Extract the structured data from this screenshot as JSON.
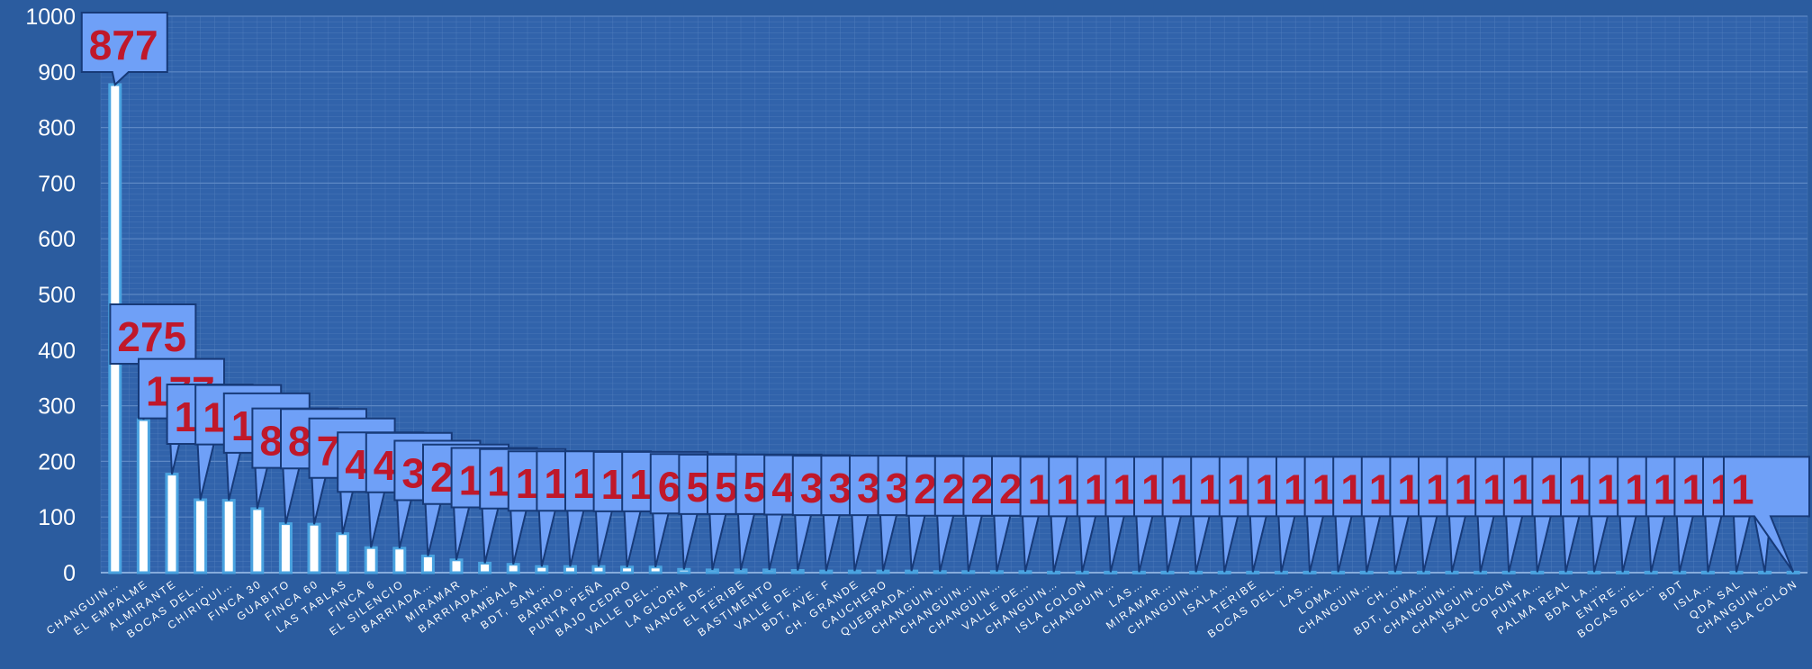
{
  "chart_data": {
    "type": "bar",
    "title": "",
    "xlabel": "",
    "ylabel": "",
    "ylim": [
      0,
      1000
    ],
    "yticks": [
      0,
      100,
      200,
      300,
      400,
      500,
      600,
      700,
      800,
      900,
      1000
    ],
    "grid": "on",
    "categories": [
      "CHANGUIN…",
      "EL EMPALME",
      "ALMIRANTE",
      "BOCAS DEL…",
      "CHIRIQUI…",
      "FINCA 30",
      "GUABITO",
      "FINCA 60",
      "LAS TABLAS",
      "FINCA 6",
      "EL SILENCIO",
      "BARRIADA…",
      "MIRAMAR",
      "BARRIADA…",
      "RAMBALA",
      "BDT, SAN…",
      "BARRIO…",
      "PUNTA PEÑA",
      "BAJO CEDRO",
      "VALLE DEL…",
      "LA GLORIA",
      "NANCE DE…",
      "EL TERIBE",
      "BASTIMENTO",
      "VALLE DE…",
      "BDT, AVE. F",
      "CH. GRANDE",
      "CAUCHERO",
      "QUEBRADA…",
      "CHANGUIN…",
      "CHANGUIN…",
      "CHANGUIN…",
      "VALLE DE…",
      "CHANGUIN…",
      "ISLA COLON",
      "CHANGUIN…",
      "LAS…",
      "MIRAMAR…",
      "CHANGUIN…",
      "ISALA…",
      "TERIBE",
      "BOCAS DEL…",
      "LAS…",
      "LOMA…",
      "CHANGUIN…",
      "CH.…",
      "BDT, LOMA…",
      "CHANGUIN…",
      "CHANGUIN…",
      "ISAL COLÓN",
      "PUNTA…",
      "PALMA REAL",
      "BDA LA…",
      "ENTRE…",
      "BOCAS DEL…",
      "BDT",
      "ISLA…",
      "QDA SAL",
      "CHANGUIN…",
      "ISLA COLÓN"
    ],
    "values": [
      877,
      275,
      177,
      131,
      130,
      115,
      88,
      87,
      70,
      45,
      44,
      30,
      23,
      17,
      15,
      11,
      11,
      11,
      10,
      10,
      6,
      5,
      5,
      5,
      4,
      3,
      3,
      3,
      3,
      2,
      2,
      2,
      2,
      1,
      1,
      1,
      1,
      1,
      1,
      1,
      1,
      1,
      1,
      1,
      1,
      1,
      1,
      1,
      1,
      1,
      1,
      1,
      1,
      1,
      1,
      1,
      1,
      1,
      1,
      1
    ],
    "data_labels": [
      "877",
      "275",
      "177",
      "131",
      "130",
      "115",
      "88",
      "87",
      "70",
      "45",
      "44",
      "30",
      "23",
      "17",
      "15",
      "11",
      "11",
      "11",
      "10",
      "10",
      "6",
      "5",
      "5",
      "5",
      "4",
      "3",
      "3",
      "3",
      "3",
      "2",
      "2",
      "2",
      "2",
      "1",
      "1",
      "1",
      "1",
      "1",
      "1",
      "1",
      "1",
      "1",
      "1",
      "1",
      "1",
      "1",
      "1",
      "1",
      "1",
      "1",
      "1",
      "1",
      "1",
      "1",
      "1",
      "1",
      "1",
      "1",
      "1",
      "1"
    ],
    "colors": {
      "background": "#2b5c9f",
      "plot_area": "#3163ab",
      "grid": "#5c87c4",
      "bar_fill": "#ffffff",
      "bar_edge": "#4aa3e0",
      "callout_fill": "#6fa0f7",
      "callout_edge": "#173a78",
      "label_text": "#c0182a",
      "axis_text": "#ffffff"
    }
  }
}
